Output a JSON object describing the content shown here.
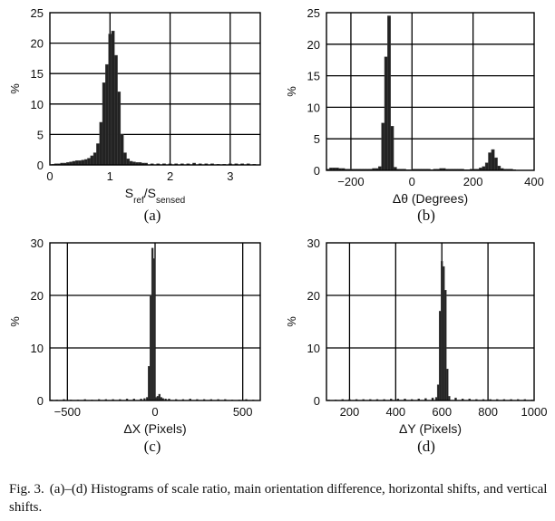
{
  "panels": [
    {
      "label": "(a)",
      "xlabel_html": "S<tspan baseline-shift='sub' font-size='10'>ref</tspan>/S<tspan baseline-shift='sub' font-size='10'>sensed</tspan>",
      "xlabel_text": "Sref/Ssensed",
      "ylabel": "%"
    },
    {
      "label": "(b)",
      "xlabel_text": "Δθ (Degrees)",
      "ylabel": "%"
    },
    {
      "label": "(c)",
      "xlabel_text": "ΔX (Pixels)",
      "ylabel": "%"
    },
    {
      "label": "(d)",
      "xlabel_text": "ΔY (Pixels)",
      "ylabel": "%"
    }
  ],
  "caption": {
    "lead": "Fig. 3.",
    "text": "(a)–(d) Histograms of scale ratio, main orientation difference, horizontal shifts, and vertical shifts."
  },
  "chart_data": [
    {
      "type": "bar",
      "title": "",
      "xlabel": "Sref/Ssensed",
      "ylabel": "%",
      "xlim": [
        0,
        3.5
      ],
      "ylim": [
        0,
        25
      ],
      "xticks": [
        0,
        1,
        2,
        3
      ],
      "yticks": [
        0,
        5,
        10,
        15,
        20,
        25
      ],
      "grid": true,
      "bar_width": 0.05,
      "x": [
        0.05,
        0.1,
        0.15,
        0.2,
        0.25,
        0.3,
        0.35,
        0.4,
        0.45,
        0.5,
        0.55,
        0.6,
        0.65,
        0.7,
        0.75,
        0.8,
        0.85,
        0.9,
        0.95,
        1.0,
        1.05,
        1.1,
        1.15,
        1.2,
        1.25,
        1.3,
        1.35,
        1.4,
        1.45,
        1.5,
        1.55,
        1.6,
        1.7,
        1.8,
        1.9,
        2.0,
        2.1,
        2.2,
        2.3,
        2.4,
        2.5,
        2.6,
        2.7,
        2.8,
        2.9,
        3.0,
        3.1,
        3.2,
        3.3,
        3.4
      ],
      "values": [
        0.1,
        0.2,
        0.2,
        0.3,
        0.3,
        0.4,
        0.5,
        0.6,
        0.7,
        0.7,
        0.8,
        0.9,
        1.1,
        1.5,
        2.0,
        3.5,
        7.0,
        13.5,
        16.5,
        21.5,
        22.0,
        18.0,
        12.0,
        5.0,
        2.0,
        1.0,
        0.6,
        0.5,
        0.4,
        0.4,
        0.3,
        0.3,
        0.2,
        0.2,
        0.2,
        0.2,
        0.2,
        0.2,
        0.2,
        0.3,
        0.2,
        0.2,
        0.2,
        0.1,
        0.1,
        0.2,
        0.2,
        0.2,
        0.2,
        0.1
      ]
    },
    {
      "type": "bar",
      "title": "",
      "xlabel": "Δθ (Degrees)",
      "ylabel": "%",
      "xlim": [
        -280,
        400
      ],
      "ylim": [
        0,
        25
      ],
      "xticks": [
        -200,
        0,
        200,
        400
      ],
      "yticks": [
        0,
        5,
        10,
        15,
        20,
        25
      ],
      "grid": true,
      "bar_width": 10,
      "x": [
        -275,
        -265,
        -255,
        -245,
        -235,
        -225,
        -215,
        -205,
        -195,
        -185,
        -175,
        -165,
        -155,
        -145,
        -135,
        -125,
        -115,
        -105,
        -95,
        -85,
        -75,
        -65,
        -55,
        -45,
        -35,
        -25,
        -15,
        -5,
        5,
        15,
        25,
        35,
        45,
        55,
        65,
        75,
        85,
        95,
        105,
        115,
        125,
        135,
        145,
        155,
        165,
        175,
        185,
        195,
        205,
        215,
        225,
        235,
        245,
        255,
        265,
        275,
        285,
        295,
        305,
        315,
        325,
        335
      ],
      "values": [
        0.2,
        0.4,
        0.4,
        0.4,
        0.3,
        0.3,
        0.2,
        0.2,
        0.2,
        0.2,
        0.2,
        0.2,
        0.2,
        0.2,
        0.2,
        0.3,
        0.3,
        0.6,
        7.5,
        18.0,
        24.5,
        7.0,
        0.5,
        0.2,
        0.2,
        0.2,
        0.1,
        0.1,
        0.2,
        0.2,
        0.2,
        0.2,
        0.2,
        0.2,
        0.1,
        0.2,
        0.2,
        0.3,
        0.3,
        0.2,
        0.2,
        0.2,
        0.2,
        0.2,
        0.2,
        0.1,
        0.1,
        0.2,
        0.2,
        0.2,
        0.4,
        0.6,
        1.2,
        2.8,
        3.3,
        2.0,
        0.7,
        0.3,
        0.2,
        0.2,
        0.2,
        0.1
      ]
    },
    {
      "type": "bar",
      "title": "",
      "xlabel": "ΔX (Pixels)",
      "ylabel": "%",
      "xlim": [
        -600,
        600
      ],
      "ylim": [
        0,
        30
      ],
      "xticks": [
        -500,
        0,
        500
      ],
      "yticks": [
        0,
        10,
        20,
        30
      ],
      "grid": true,
      "bar_width": 10,
      "x": [
        -590,
        -560,
        -520,
        -480,
        -440,
        -400,
        -360,
        -320,
        -280,
        -240,
        -200,
        -160,
        -120,
        -80,
        -60,
        -45,
        -35,
        -25,
        -15,
        -5,
        5,
        15,
        25,
        35,
        45,
        60,
        80,
        120,
        160,
        200,
        240,
        280,
        320,
        360,
        400,
        440,
        480,
        520,
        560
      ],
      "values": [
        0.1,
        0.1,
        0.2,
        0.1,
        0.1,
        0.2,
        0.1,
        0.2,
        0.2,
        0.2,
        0.2,
        0.3,
        0.3,
        0.3,
        0.4,
        0.6,
        6.5,
        20.0,
        29.0,
        27.0,
        0.6,
        0.8,
        1.2,
        0.6,
        0.4,
        0.3,
        0.3,
        0.2,
        0.2,
        0.3,
        0.2,
        0.2,
        0.2,
        0.2,
        0.2,
        0.1,
        0.1,
        0.2,
        0.1
      ]
    },
    {
      "type": "bar",
      "title": "",
      "xlabel": "ΔY (Pixels)",
      "ylabel": "%",
      "xlim": [
        100,
        1000
      ],
      "ylim": [
        0,
        30
      ],
      "xticks": [
        200,
        400,
        600,
        800,
        1000
      ],
      "yticks": [
        0,
        10,
        20,
        30
      ],
      "grid": true,
      "bar_width": 8,
      "x": [
        110,
        140,
        170,
        200,
        230,
        260,
        290,
        320,
        350,
        380,
        410,
        440,
        470,
        500,
        530,
        560,
        576,
        584,
        592,
        600,
        608,
        616,
        624,
        632,
        660,
        690,
        720,
        750,
        780,
        810,
        840,
        870,
        900,
        930,
        960,
        990
      ],
      "values": [
        0.1,
        0.1,
        0.2,
        0.2,
        0.2,
        0.2,
        0.2,
        0.2,
        0.2,
        0.3,
        0.3,
        0.3,
        0.2,
        0.3,
        0.4,
        0.5,
        0.6,
        3.0,
        17.0,
        26.5,
        25.5,
        21.0,
        6.0,
        0.8,
        0.5,
        0.3,
        0.3,
        0.2,
        0.2,
        0.2,
        0.2,
        0.2,
        0.2,
        0.2,
        0.2,
        0.1
      ]
    }
  ]
}
